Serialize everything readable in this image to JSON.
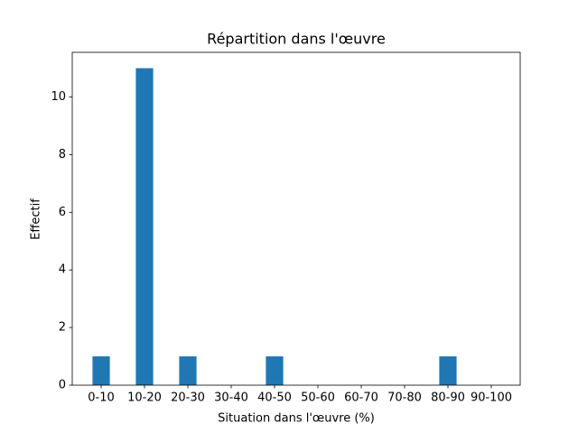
{
  "chart_data": {
    "type": "bar",
    "title": "Répartition dans l'œuvre",
    "x_label": "Situation dans l'œuvre (%)",
    "y_label": "Effectif",
    "categories": [
      "0-10",
      "10-20",
      "20-30",
      "30-40",
      "40-50",
      "50-60",
      "60-70",
      "70-80",
      "80-90",
      "90-100"
    ],
    "values": [
      1,
      11,
      1,
      0,
      1,
      0,
      0,
      0,
      1,
      0
    ],
    "color": "#1f77b4",
    "ylim": [
      0,
      11.55
    ],
    "yticks": [
      0,
      2,
      4,
      6,
      8,
      10
    ],
    "grid": false
  }
}
